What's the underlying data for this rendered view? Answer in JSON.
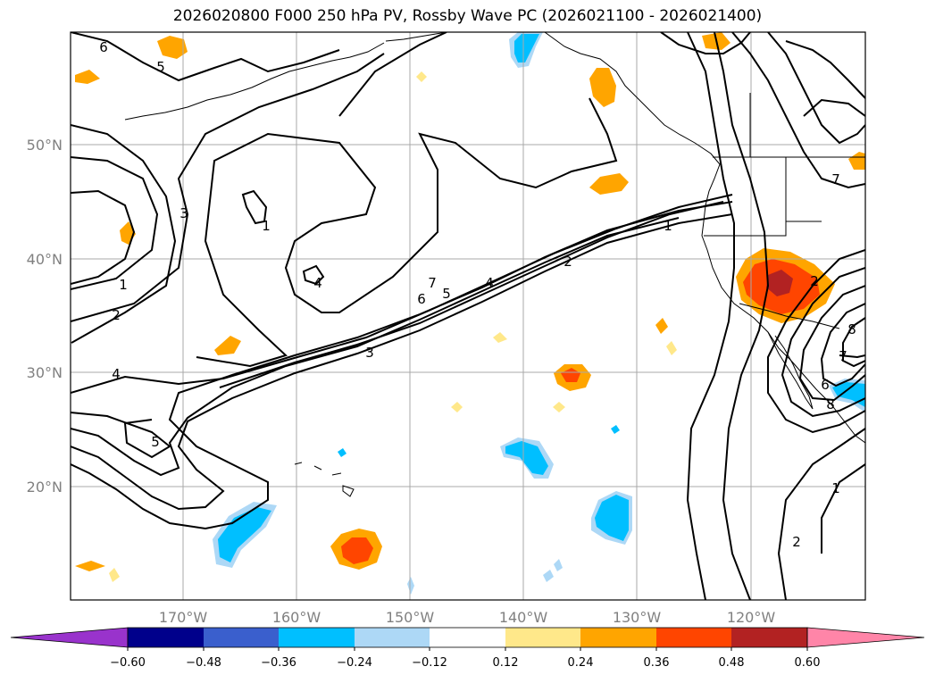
{
  "title": "2026020800 F000 250 hPa PV, Rossby Wave PC (2026021100 - 2026021400)",
  "map": {
    "lat_labels": [
      "50°N",
      "40°N",
      "30°N",
      "20°N"
    ],
    "lon_labels": [
      "170°W",
      "160°W",
      "150°W",
      "140°W",
      "130°W",
      "120°W"
    ],
    "contour_labels": [
      "6",
      "5",
      "3",
      "1",
      "2",
      "4",
      "1",
      "2",
      "4",
      "5",
      "3",
      "6",
      "7",
      "5",
      "4",
      "2",
      "1",
      "7",
      "8",
      "1",
      "2",
      "6",
      "7",
      "8"
    ]
  },
  "colorbar": {
    "ticks": [
      "−0.60",
      "−0.48",
      "−0.36",
      "−0.24",
      "−0.12",
      "0.12",
      "0.24",
      "0.36",
      "0.48",
      "0.60"
    ],
    "colors": [
      "#9933cc",
      "#00008b",
      "#3a5fcd",
      "#00bfff",
      "#add8f6",
      "#ffffff",
      "#ffe88a",
      "#ffa500",
      "#ff4500",
      "#b22222",
      "#ff85a8"
    ]
  },
  "colors": {
    "gridline": "#a9a9a9",
    "contour": "#000000",
    "frame": "#000000"
  }
}
